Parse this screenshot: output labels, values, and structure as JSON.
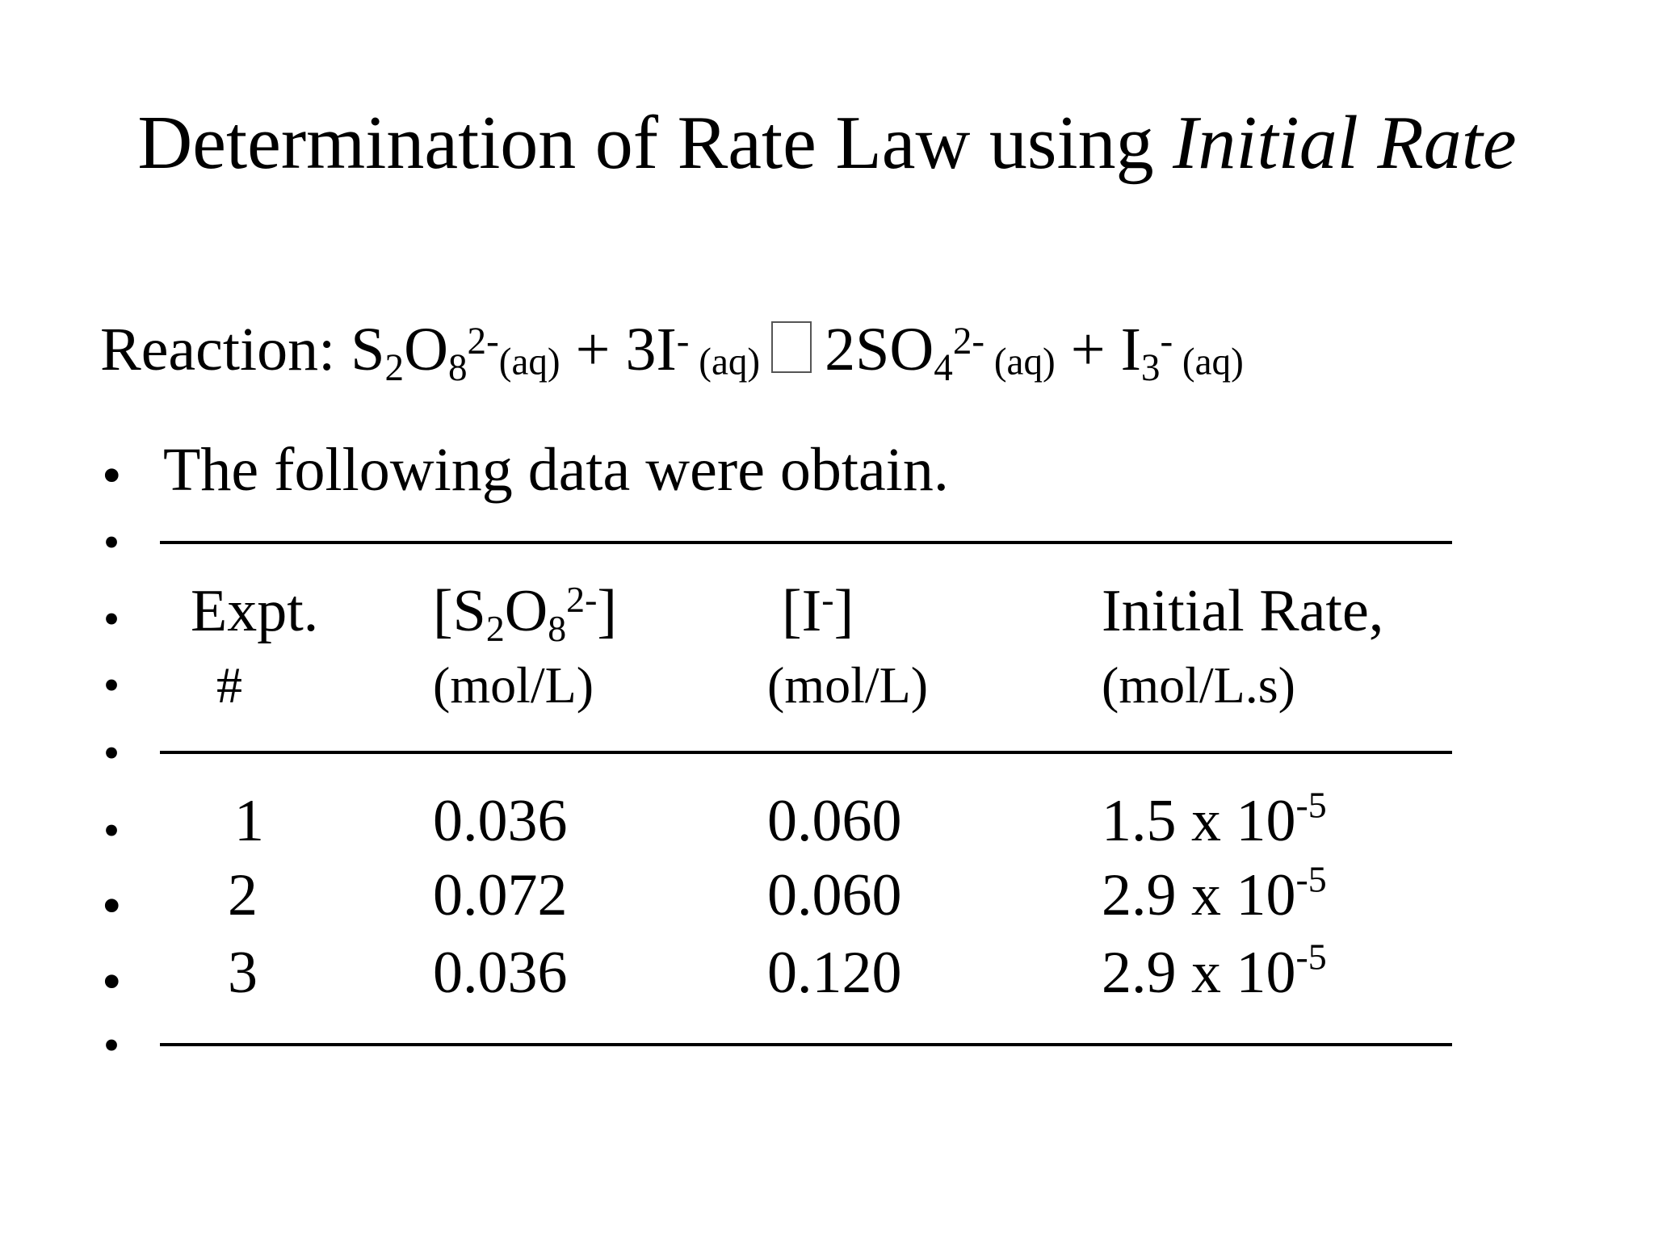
{
  "title": {
    "main": "Determination of Rate Law using ",
    "italic": "Initial Rate"
  },
  "reaction": {
    "label": "Reaction: ",
    "r1_a": "S",
    "r1_sub1": "2",
    "r1_b": "O",
    "r1_sub2": "8",
    "r1_sup": "2-",
    "r1_phase": "(aq)",
    "plus1": " + 3I",
    "r2_sup": "-",
    "r2_phase": " (aq)",
    "p1_a": "2SO",
    "p1_sub": "4",
    "p1_sup": "2-",
    "p1_phase": " (aq)",
    "plus2": " + I",
    "p2_sub": "3",
    "p2_sup": "-",
    "p2_phase": " (aq)"
  },
  "bullet_text": "The following data were obtain.",
  "bullet_glyph": "•",
  "table": {
    "headers": {
      "expt": "Expt.",
      "expt_unit": "#",
      "s2o8_open": "[S",
      "s2o8_sub1": "2",
      "s2o8_o": "O",
      "s2o8_sub2": "8",
      "s2o8_sup": "2-",
      "s2o8_close": "]",
      "s2o8_unit": "(mol/L)",
      "iodide_open": "[I",
      "iodide_sup": "-",
      "iodide_close": "]",
      "iodide_unit": "(mol/L)",
      "rate": "Initial Rate,",
      "rate_unit": "(mol/L.s)"
    },
    "rows": [
      {
        "expt": "1",
        "s2o8": "0.036",
        "iodide": "0.060",
        "rate_base": "1.5 x 10",
        "rate_exp": "-5"
      },
      {
        "expt": "2",
        "s2o8": "0.072",
        "iodide": "0.060",
        "rate_base": "2.9 x 10",
        "rate_exp": "-5"
      },
      {
        "expt": "3",
        "s2o8": "0.036",
        "iodide": "0.120",
        "rate_base": "2.9 x 10",
        "rate_exp": "-5"
      }
    ]
  }
}
